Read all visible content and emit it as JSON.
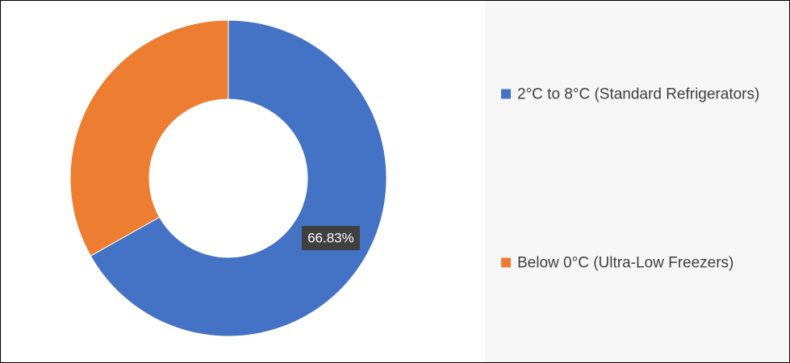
{
  "chart_data": {
    "type": "donut",
    "series": [
      {
        "name": "2°C to 8°C (Standard Refrigerators)",
        "color": "#4472c4",
        "value": 66.83,
        "value_label": "66.83%"
      },
      {
        "name": "Below 0°C (Ultra-Low Freezers)",
        "color": "#ed7d31",
        "value": 33.17
      }
    ]
  }
}
